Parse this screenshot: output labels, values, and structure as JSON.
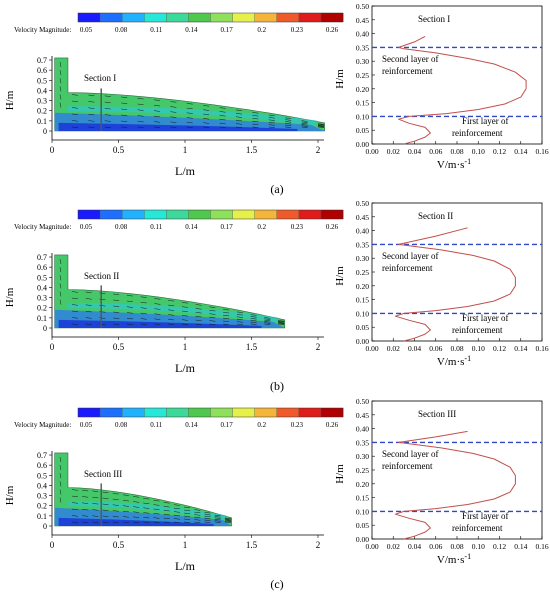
{
  "colorbar": {
    "label": "Velocity Magnitude:",
    "ticks": [
      "0.05",
      "0.08",
      "0.11",
      "0.14",
      "0.17",
      "0.2",
      "0.23",
      "0.26"
    ],
    "colors": [
      "#1a1aff",
      "#1e6fff",
      "#21b2ff",
      "#26e8d8",
      "#3cd99a",
      "#4fc84e",
      "#8fe05a",
      "#e6f04a",
      "#f5b53b",
      "#f05a2a",
      "#e01b1b",
      "#b00000"
    ]
  },
  "flow_axes": {
    "ylabel": "H/m",
    "xlabel": "L/m",
    "yticks": [
      "0.7",
      "0.6",
      "0.5",
      "0.4",
      "0.3",
      "0.2",
      "0.1",
      "0"
    ],
    "xticks": [
      "0",
      "0.5",
      "1",
      "1.5",
      "2"
    ]
  },
  "profile_axes": {
    "ylabel": "H/m",
    "xlabel": "V/m·s",
    "xlabel_sup": "-1",
    "yticks": [
      "0.00",
      "0.05",
      "0.10",
      "0.15",
      "0.20",
      "0.25",
      "0.30",
      "0.35",
      "0.40",
      "0.45",
      "0.50"
    ],
    "xticks": [
      "0.00",
      "0.02",
      "0.04",
      "0.06",
      "0.08",
      "0.10",
      "0.12",
      "0.14",
      "0.16"
    ]
  },
  "annotations": {
    "second_layer": [
      "Second layer of",
      "reinforcement"
    ],
    "first_layer": [
      "First layer of",
      "reinforcement"
    ]
  },
  "panels": [
    {
      "label": "(a)",
      "section": "Section I",
      "profile_section": "Section I",
      "extent": 2.05
    },
    {
      "label": "(b)",
      "section": "Section II",
      "profile_section": "Section II",
      "extent": 1.75
    },
    {
      "label": "(c)",
      "section": "Section III",
      "profile_section": "Section III",
      "extent": 1.35
    }
  ],
  "chart_data": [
    {
      "type": "line",
      "title": "Section I",
      "xlabel": "V/m·s-1",
      "ylabel": "H/m",
      "xlim": [
        0,
        0.16
      ],
      "ylim": [
        0,
        0.5
      ],
      "reference_lines_y": [
        0.35,
        0.1
      ],
      "x": [
        0.05,
        0.04,
        0.025,
        0.03,
        0.06,
        0.09,
        0.115,
        0.135,
        0.145,
        0.145,
        0.14,
        0.125,
        0.1,
        0.07,
        0.035,
        0.025,
        0.035,
        0.05,
        0.055,
        0.05,
        0.04,
        0.03
      ],
      "y": [
        0.39,
        0.37,
        0.35,
        0.345,
        0.33,
        0.31,
        0.29,
        0.26,
        0.23,
        0.2,
        0.17,
        0.145,
        0.125,
        0.11,
        0.1,
        0.09,
        0.075,
        0.06,
        0.04,
        0.025,
        0.01,
        0.0
      ]
    },
    {
      "type": "line",
      "title": "Section II",
      "xlabel": "V/m·s-1",
      "ylabel": "H/m",
      "xlim": [
        0,
        0.16
      ],
      "ylim": [
        0,
        0.5
      ],
      "reference_lines_y": [
        0.35,
        0.1
      ],
      "x": [
        0.09,
        0.06,
        0.025,
        0.035,
        0.065,
        0.095,
        0.115,
        0.13,
        0.135,
        0.135,
        0.13,
        0.115,
        0.09,
        0.06,
        0.03,
        0.022,
        0.035,
        0.05,
        0.055,
        0.05,
        0.04,
        0.03
      ],
      "y": [
        0.41,
        0.38,
        0.35,
        0.345,
        0.33,
        0.31,
        0.29,
        0.26,
        0.23,
        0.2,
        0.17,
        0.145,
        0.125,
        0.11,
        0.1,
        0.09,
        0.075,
        0.06,
        0.04,
        0.025,
        0.01,
        0.0
      ]
    },
    {
      "type": "line",
      "title": "Section III",
      "xlabel": "V/m·s-1",
      "ylabel": "H/m",
      "xlim": [
        0,
        0.16
      ],
      "ylim": [
        0,
        0.5
      ],
      "reference_lines_y": [
        0.35,
        0.1
      ],
      "x": [
        0.09,
        0.06,
        0.025,
        0.035,
        0.065,
        0.095,
        0.115,
        0.13,
        0.135,
        0.135,
        0.13,
        0.115,
        0.09,
        0.06,
        0.03,
        0.022,
        0.035,
        0.05,
        0.055,
        0.05,
        0.04,
        0.03
      ],
      "y": [
        0.39,
        0.37,
        0.35,
        0.345,
        0.33,
        0.31,
        0.29,
        0.26,
        0.23,
        0.2,
        0.17,
        0.145,
        0.125,
        0.11,
        0.1,
        0.09,
        0.075,
        0.06,
        0.04,
        0.025,
        0.01,
        0.0
      ]
    }
  ]
}
